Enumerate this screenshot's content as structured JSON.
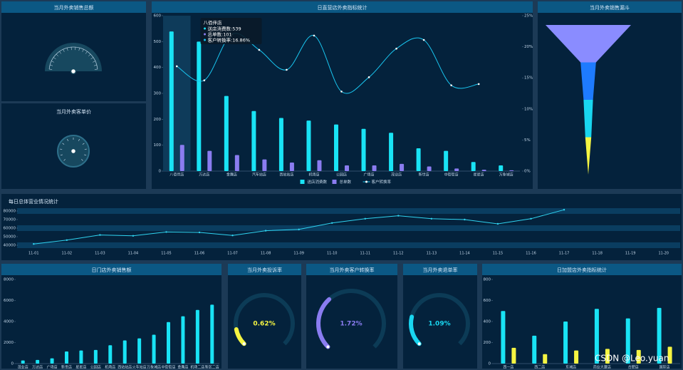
{
  "chart_data": [
    {
      "type": "gauge",
      "title": "当月外卖销售总额"
    },
    {
      "type": "gauge",
      "title": "当月外卖客单价"
    },
    {
      "type": "bar",
      "title": "日直营店外卖指标统计",
      "categories": [
        "八佰伴店",
        "万达店",
        "金鹰店",
        "汽车站店",
        "西站站店",
        "机场店",
        "公园店",
        "广场店",
        "茂业店",
        "新世店",
        "中街街店",
        "星星店",
        "万象城店"
      ],
      "series": [
        {
          "name": "送店消费数",
          "color": "#19e3f5",
          "values": [
            539,
            500,
            290,
            232,
            205,
            195,
            180,
            163,
            148,
            88,
            78,
            35,
            22
          ]
        },
        {
          "name": "总单数",
          "color": "#8a7cf0",
          "values": [
            101,
            78,
            62,
            45,
            33,
            42,
            22,
            22,
            28,
            18,
            10,
            5,
            3
          ]
        },
        {
          "name": "客户转换率",
          "type": "line",
          "axis": "y2",
          "color": "#19c6f0",
          "values": [
            16.86,
            14.6,
            22.0,
            19.5,
            16.3,
            21.8,
            12.8,
            15.1,
            19.7,
            21.1,
            13.8,
            14.0,
            null
          ]
        }
      ],
      "ylim": [
        0,
        600
      ],
      "yticks": [
        0,
        100,
        200,
        300,
        400,
        500,
        600
      ],
      "y2lim": [
        0,
        25
      ],
      "y2ticks": [
        {
          "value": 0,
          "label": "0%"
        },
        {
          "value": 5,
          "label": "5%"
        },
        {
          "value": 10,
          "label": "10%"
        },
        {
          "value": 15,
          "label": "15%"
        },
        {
          "value": 20,
          "label": "20%"
        },
        {
          "value": 25,
          "label": "25%"
        }
      ],
      "tooltip": {
        "title": "八佰伴店",
        "lines": [
          "送店消费数:539",
          "总单数:101",
          "客户转换率:16.86%"
        ]
      }
    },
    {
      "type": "funnel",
      "title": "当月外卖销售漏斗",
      "values": [
        100,
        18,
        11,
        7
      ],
      "colors": [
        "#8a8cff",
        "#1e7bff",
        "#19d6f0",
        "#f5f542"
      ]
    },
    {
      "type": "line",
      "title": "每日总体营业情况统计",
      "categories": [
        "11-01",
        "11-02",
        "11-03",
        "11-04",
        "11-05",
        "11-06",
        "11-07",
        "11-08",
        "11-09",
        "11-10",
        "11-11",
        "11-12",
        "11-13",
        "11-14",
        "11-15",
        "11-16",
        "11-17",
        "11-18",
        "11-19",
        "11-20"
      ],
      "values": [
        41500,
        46000,
        52000,
        51000,
        55500,
        55000,
        51500,
        57000,
        58500,
        66000,
        71000,
        74500,
        71000,
        70000,
        65000,
        71000,
        81500,
        null,
        null,
        null
      ],
      "color": "#2fd3f0",
      "ylim": [
        35000,
        85000
      ],
      "yticks": [
        40000,
        50000,
        60000,
        70000,
        80000
      ]
    },
    {
      "type": "bar",
      "title": "日门店外卖销售额",
      "categories": [
        "茂业店",
        "万达店",
        "广场店",
        "新世店",
        "星星店",
        "公园店",
        "机场店",
        "西站站店",
        "火车站店",
        "万象城店",
        "中街街店",
        "金鹰店",
        "机场二店",
        "新区二店"
      ],
      "series": [
        {
          "color": "#19e3f5",
          "values": [
            300,
            350,
            500,
            1150,
            1250,
            1300,
            1750,
            2200,
            2400,
            2750,
            3950,
            4500,
            5100,
            5600
          ]
        }
      ],
      "ylim": [
        0,
        8000
      ],
      "yticks": [
        0,
        2000,
        4000,
        6000,
        8000
      ]
    },
    {
      "type": "gauge",
      "title": "当月外卖投诉率",
      "values": [
        0.62
      ],
      "value_labels": [
        "0.62%"
      ],
      "color": "#f5f542",
      "ylim": [
        0,
        5
      ]
    },
    {
      "type": "gauge",
      "title": "当月外卖客户转换率",
      "values": [
        1.72
      ],
      "value_labels": [
        "1.72%"
      ],
      "color": "#8a7cf0",
      "ylim": [
        0,
        5
      ]
    },
    {
      "type": "gauge",
      "title": "当月外卖退单率",
      "values": [
        1.09
      ],
      "value_labels": [
        "1.09%"
      ],
      "color": "#19d6f0",
      "ylim": [
        0,
        5
      ]
    },
    {
      "type": "bar",
      "title": "日加盟店外卖指标统计",
      "categories": [
        "西一店",
        "西二店",
        "东城店",
        "商业大厦店",
        "合肥店",
        "国际店"
      ],
      "series": [
        {
          "color": "#19e3f5",
          "values": [
            500,
            265,
            400,
            520,
            430,
            530
          ]
        },
        {
          "color": "#f5f542",
          "values": [
            150,
            90,
            125,
            140,
            130,
            160
          ]
        }
      ],
      "ylim": [
        0,
        800
      ],
      "yticks": [
        0,
        200,
        400,
        600,
        800
      ]
    }
  ],
  "watermark": "CSDN @Leo.yuan"
}
